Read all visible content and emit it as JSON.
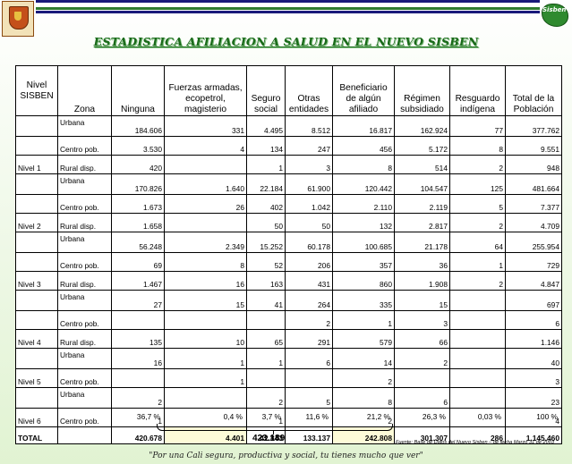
{
  "header": {
    "title": "ESTADISTICA AFILIACION A SALUD EN EL NUEVO SISBEN",
    "logo_right_text": "Sisben"
  },
  "table": {
    "columns": [
      "Nivel SISBEN",
      "Zona",
      "Ninguna",
      "Fuerzas armadas, ecopetrol, magisterio",
      "Seguro social",
      "Otras entidades",
      "Beneficiario de algún afiliado",
      "Régimen subsidiado",
      "Resguardo indígena",
      "Total de la Población"
    ],
    "rows": [
      {
        "nivel": "",
        "zona": "Urbana",
        "values": [
          "184.606",
          "331",
          "4.495",
          "8.512",
          "16.817",
          "162.924",
          "77",
          "377.762"
        ]
      },
      {
        "nivel": "",
        "zona": "Centro pob.",
        "values": [
          "3.530",
          "4",
          "134",
          "247",
          "456",
          "5.172",
          "8",
          "9.551"
        ]
      },
      {
        "nivel": "Nivel 1",
        "zona": "Rural disp.",
        "values": [
          "420",
          "",
          "1",
          "3",
          "8",
          "514",
          "2",
          "948"
        ]
      },
      {
        "nivel": "",
        "zona": "Urbana",
        "values": [
          "170.826",
          "1.640",
          "22.184",
          "61.900",
          "120.442",
          "104.547",
          "125",
          "481.664"
        ]
      },
      {
        "nivel": "",
        "zona": "Centro pob.",
        "values": [
          "1.673",
          "26",
          "402",
          "1.042",
          "2.110",
          "2.119",
          "5",
          "7.377"
        ]
      },
      {
        "nivel": "Nivel 2",
        "zona": "Rural disp.",
        "values": [
          "1.658",
          "",
          "50",
          "50",
          "132",
          "2.817",
          "2",
          "4.709"
        ]
      },
      {
        "nivel": "",
        "zona": "Urbana",
        "values": [
          "56.248",
          "2.349",
          "15.252",
          "60.178",
          "100.685",
          "21.178",
          "64",
          "255.954"
        ]
      },
      {
        "nivel": "",
        "zona": "Centro pob.",
        "values": [
          "69",
          "8",
          "52",
          "206",
          "357",
          "36",
          "1",
          "729"
        ]
      },
      {
        "nivel": "Nivel 3",
        "zona": "Rural disp.",
        "values": [
          "1.467",
          "16",
          "163",
          "431",
          "860",
          "1.908",
          "2",
          "4.847"
        ]
      },
      {
        "nivel": "",
        "zona": "Urbana",
        "values": [
          "27",
          "15",
          "41",
          "264",
          "335",
          "15",
          "",
          "697"
        ]
      },
      {
        "nivel": "",
        "zona": "Centro pob.",
        "values": [
          "",
          "",
          "",
          "2",
          "1",
          "3",
          "",
          "6"
        ]
      },
      {
        "nivel": "Nivel 4",
        "zona": "Rural disp.",
        "values": [
          "135",
          "10",
          "65",
          "291",
          "579",
          "66",
          "",
          "1.146"
        ]
      },
      {
        "nivel": "",
        "zona": "Urbana",
        "values": [
          "16",
          "1",
          "1",
          "6",
          "14",
          "2",
          "",
          "40"
        ]
      },
      {
        "nivel": "Nivel 5",
        "zona": "Centro pob.",
        "values": [
          "",
          "1",
          "",
          "",
          "2",
          "",
          "",
          "3"
        ]
      },
      {
        "nivel": "",
        "zona": "Urbana",
        "values": [
          "2",
          "",
          "2",
          "5",
          "8",
          "6",
          "",
          "23"
        ]
      },
      {
        "nivel": "Nivel 6",
        "zona": "Centro pob.",
        "values": [
          "1",
          "",
          "1",
          "",
          "2",
          "",
          "",
          "4"
        ]
      }
    ],
    "total": {
      "label": "TOTAL",
      "values": [
        "420.678",
        "4.401",
        "42.843",
        "133.137",
        "242.808",
        "301.307",
        "286",
        "1.145.460"
      ]
    },
    "percentages": [
      "36,7 %",
      "0,4 %",
      "3,7 %",
      "11,6 %",
      "21,2 %",
      "26,3 %",
      "0,03 %",
      "100 %"
    ]
  },
  "subtotal": "423.189",
  "source": "Fuente: Base de Datos del Nuevo Sisben – de fecha Marzo 31 de 2003",
  "slogan": "\"Por una Cali segura, productiva y social, tu tienes mucho que ver\""
}
